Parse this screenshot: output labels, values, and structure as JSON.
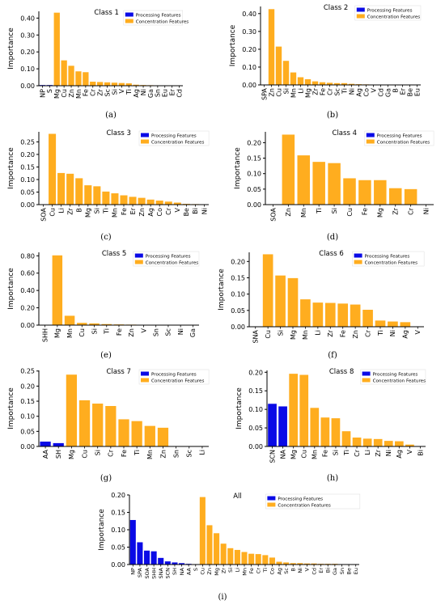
{
  "colors": {
    "processing": "#0a0ae6",
    "concentration": "#ffad1f",
    "axis": "#000000"
  },
  "legend": {
    "processing": "Processing Features",
    "concentration": "Concentration Features"
  },
  "chart_data": [
    {
      "id": "a",
      "type": "bar",
      "title": "Class 1",
      "caption": "(a)",
      "ylabel": "Importance",
      "ylim": [
        0,
        0.44
      ],
      "yticks": [
        0,
        0.1,
        0.2,
        0.3,
        0.4
      ],
      "ytick_labels": [
        "0.00",
        "0.10",
        "0.20",
        "0.30",
        "0.40"
      ],
      "legend_position": "top-right",
      "categories": [
        "NP",
        "S",
        "Mg",
        "Cu",
        "Zn",
        "Mn",
        "Fe",
        "Cr",
        "Zr",
        "Sc",
        "Si",
        "V",
        "Ti",
        "Ag",
        "Ni",
        "Ga",
        "Sn",
        "Eu",
        "Er",
        "Cd"
      ],
      "groups": [
        "p",
        "p",
        "c",
        "c",
        "c",
        "c",
        "c",
        "c",
        "c",
        "c",
        "c",
        "c",
        "c",
        "c",
        "c",
        "c",
        "c",
        "c",
        "c",
        "c"
      ],
      "values": [
        0.004,
        0.004,
        0.432,
        0.15,
        0.118,
        0.085,
        0.08,
        0.024,
        0.022,
        0.02,
        0.018,
        0.016,
        0.014,
        0.006,
        0.004,
        0.003,
        0.002,
        0.002,
        0.001,
        0.001
      ]
    },
    {
      "id": "b",
      "type": "bar",
      "title": "Class 2",
      "caption": "(b)",
      "ylabel": "Importance",
      "ylim": [
        0,
        0.44
      ],
      "yticks": [
        0,
        0.1,
        0.2,
        0.3,
        0.4
      ],
      "ytick_labels": [
        "0.00",
        "0.10",
        "0.20",
        "0.30",
        "0.40"
      ],
      "legend_position": "top-right",
      "categories": [
        "SPA",
        "Zn",
        "Cu",
        "Si",
        "Mn",
        "Li",
        "Mg",
        "Zr",
        "Fe",
        "Cr",
        "Sc",
        "Ti",
        "Ni",
        "Ag",
        "Co",
        "V",
        "Cd",
        "Ga",
        "B",
        "Er",
        "Be",
        "Eu"
      ],
      "groups": [
        "p",
        "c",
        "c",
        "c",
        "c",
        "c",
        "c",
        "c",
        "c",
        "c",
        "c",
        "c",
        "c",
        "c",
        "c",
        "c",
        "c",
        "c",
        "c",
        "c",
        "c",
        "c"
      ],
      "values": [
        0.0,
        0.425,
        0.215,
        0.135,
        0.07,
        0.043,
        0.032,
        0.02,
        0.015,
        0.012,
        0.01,
        0.01,
        0.006,
        0.004,
        0.003,
        0.002,
        0.001,
        0.001,
        0.001,
        0.001,
        0.001,
        0.001
      ]
    },
    {
      "id": "c",
      "type": "bar",
      "title": "Class 3",
      "caption": "(c)",
      "ylabel": "Importance",
      "ylim": [
        0,
        0.29
      ],
      "yticks": [
        0,
        0.05,
        0.1,
        0.15,
        0.2,
        0.25
      ],
      "ytick_labels": [
        "0.00",
        "0.05",
        "0.10",
        "0.15",
        "0.20",
        "0.25"
      ],
      "legend_position": "top-right",
      "categories": [
        "SOA",
        "Cu",
        "Li",
        "Zr",
        "B",
        "Mg",
        "Si",
        "Ti",
        "Mn",
        "Fe",
        "Er",
        "Zn",
        "Ag",
        "Co",
        "Cr",
        "V",
        "Be",
        "Bi",
        "Ni"
      ],
      "groups": [
        "p",
        "c",
        "c",
        "c",
        "c",
        "c",
        "c",
        "c",
        "c",
        "c",
        "c",
        "c",
        "c",
        "c",
        "c",
        "c",
        "c",
        "c",
        "c"
      ],
      "values": [
        0.0,
        0.282,
        0.126,
        0.123,
        0.105,
        0.077,
        0.073,
        0.052,
        0.045,
        0.037,
        0.031,
        0.027,
        0.02,
        0.016,
        0.012,
        0.008,
        0.003,
        0.002,
        0.001
      ]
    },
    {
      "id": "d",
      "type": "bar",
      "title": "Class 4",
      "caption": "(d)",
      "ylabel": "Importance",
      "ylim": [
        0,
        0.235
      ],
      "yticks": [
        0,
        0.05,
        0.1,
        0.15,
        0.2
      ],
      "ytick_labels": [
        "0.00",
        "0.05",
        "0.10",
        "0.15",
        "0.20"
      ],
      "legend_position": "top-right",
      "categories": [
        "SOA",
        "Zn",
        "Mn",
        "Ti",
        "Si",
        "Cu",
        "Fe",
        "Mg",
        "Zr",
        "Cr",
        "Ni"
      ],
      "groups": [
        "p",
        "c",
        "c",
        "c",
        "c",
        "c",
        "c",
        "c",
        "c",
        "c",
        "c"
      ],
      "values": [
        0.0,
        0.226,
        0.159,
        0.138,
        0.134,
        0.085,
        0.079,
        0.079,
        0.053,
        0.05,
        0.0
      ]
    },
    {
      "id": "e",
      "type": "bar",
      "title": "Class 5",
      "caption": "(e)",
      "ylabel": "Importance",
      "ylim": [
        0,
        0.84
      ],
      "yticks": [
        0,
        0.2,
        0.4,
        0.6,
        0.8
      ],
      "ytick_labels": [
        "0.00",
        "0.20",
        "0.40",
        "0.60",
        "0.80"
      ],
      "legend_position": "top-right",
      "categories": [
        "SHH",
        "Mg",
        "Mn",
        "Cu",
        "Si",
        "Ti",
        "Fe",
        "Zn",
        "V",
        "Sn",
        "Sc",
        "Ni",
        "Ga"
      ],
      "groups": [
        "p",
        "c",
        "c",
        "c",
        "c",
        "c",
        "c",
        "c",
        "c",
        "c",
        "c",
        "c",
        "c"
      ],
      "values": [
        0.0,
        0.805,
        0.108,
        0.026,
        0.02,
        0.012,
        0.008,
        0.006,
        0.004,
        0.003,
        0.002,
        0.001,
        0.001
      ]
    },
    {
      "id": "f",
      "type": "bar",
      "title": "Class 6",
      "caption": "(f)",
      "ylabel": "Importance",
      "ylim": [
        0,
        0.228
      ],
      "yticks": [
        0,
        0.05,
        0.1,
        0.15,
        0.2
      ],
      "ytick_labels": [
        "0.00",
        "0.05",
        "0.10",
        "0.15",
        "0.20"
      ],
      "legend_position": "top-right",
      "categories": [
        "SNA",
        "Cu",
        "Si",
        "Mg",
        "Mn",
        "Li",
        "Zr",
        "Fe",
        "Zn",
        "Cr",
        "Ti",
        "Ni",
        "Ag",
        "V"
      ],
      "groups": [
        "p",
        "c",
        "c",
        "c",
        "c",
        "c",
        "c",
        "c",
        "c",
        "c",
        "c",
        "c",
        "c",
        "c"
      ],
      "values": [
        0.0,
        0.222,
        0.157,
        0.149,
        0.084,
        0.074,
        0.073,
        0.071,
        0.068,
        0.052,
        0.019,
        0.016,
        0.014,
        0.001
      ]
    },
    {
      "id": "g",
      "type": "bar",
      "title": "Class 7",
      "caption": "(g)",
      "ylabel": "Importance",
      "ylim": [
        0,
        0.252
      ],
      "yticks": [
        0,
        0.05,
        0.1,
        0.15,
        0.2,
        0.25
      ],
      "ytick_labels": [
        "0.00",
        "0.05",
        "0.10",
        "0.15",
        "0.20",
        "0.25"
      ],
      "legend_position": "top-right",
      "categories": [
        "AA",
        "SH",
        "Mg",
        "Cu",
        "Si",
        "Cr",
        "Fe",
        "Ti",
        "Mn",
        "Zn",
        "Sn",
        "Sc",
        "Li"
      ],
      "groups": [
        "p",
        "p",
        "c",
        "c",
        "c",
        "c",
        "c",
        "c",
        "c",
        "c",
        "c",
        "c",
        "c"
      ],
      "values": [
        0.016,
        0.011,
        0.238,
        0.153,
        0.142,
        0.134,
        0.09,
        0.084,
        0.068,
        0.062,
        0.0,
        0.0,
        0.0
      ]
    },
    {
      "id": "h",
      "type": "bar",
      "title": "Class 8",
      "caption": "(h)",
      "ylabel": "Importance",
      "ylim": [
        0,
        0.205
      ],
      "yticks": [
        0,
        0.05,
        0.1,
        0.15,
        0.2
      ],
      "ytick_labels": [
        "0.00",
        "0.05",
        "0.10",
        "0.15",
        "0.20"
      ],
      "legend_position": "top-right",
      "categories": [
        "SCN",
        "NA",
        "Mg",
        "Cu",
        "Mn",
        "Fe",
        "Si",
        "Ti",
        "Cr",
        "Li",
        "Zr",
        "Ni",
        "Ag",
        "V",
        "Bi"
      ],
      "groups": [
        "p",
        "p",
        "c",
        "c",
        "c",
        "c",
        "c",
        "c",
        "c",
        "c",
        "c",
        "c",
        "c",
        "c",
        "c"
      ],
      "values": [
        0.115,
        0.108,
        0.196,
        0.193,
        0.104,
        0.078,
        0.076,
        0.041,
        0.024,
        0.021,
        0.02,
        0.015,
        0.014,
        0.005,
        0.001
      ]
    },
    {
      "id": "i",
      "type": "bar",
      "title": "All",
      "caption": "(i)",
      "ylabel": "Importance",
      "ylim": [
        0,
        0.2
      ],
      "yticks": [
        0,
        0.05,
        0.1,
        0.15,
        0.2
      ],
      "ytick_labels": [
        "0.00",
        "0.05",
        "0.10",
        "0.15",
        "0.20"
      ],
      "legend_position": "top-right",
      "categories": [
        "NP",
        "SPA",
        "SOA",
        "SHH",
        "SNA",
        "SCN",
        "SH",
        "NA",
        "AA",
        "S",
        "Cu",
        "Zn",
        "Mg",
        "Zr",
        "Si",
        "Li",
        "Mn",
        "Fe",
        "Cr",
        "Ti",
        "Co",
        "Ag",
        "Sc",
        "B",
        "Ni",
        "V",
        "Cd",
        "Er",
        "Bi",
        "Ga",
        "Sn",
        "Be",
        "Eu"
      ],
      "groups": [
        "p",
        "p",
        "p",
        "p",
        "p",
        "p",
        "p",
        "p",
        "p",
        "p",
        "c",
        "c",
        "c",
        "c",
        "c",
        "c",
        "c",
        "c",
        "c",
        "c",
        "c",
        "c",
        "c",
        "c",
        "c",
        "c",
        "c",
        "c",
        "c",
        "c",
        "c",
        "c",
        "c"
      ],
      "values": [
        0.128,
        0.064,
        0.04,
        0.038,
        0.019,
        0.009,
        0.006,
        0.004,
        0.002,
        0.001,
        0.194,
        0.113,
        0.09,
        0.06,
        0.047,
        0.042,
        0.036,
        0.031,
        0.03,
        0.027,
        0.02,
        0.008,
        0.006,
        0.004,
        0.004,
        0.003,
        0.003,
        0.002,
        0.002,
        0.002,
        0.001,
        0.001,
        0.001
      ]
    }
  ]
}
